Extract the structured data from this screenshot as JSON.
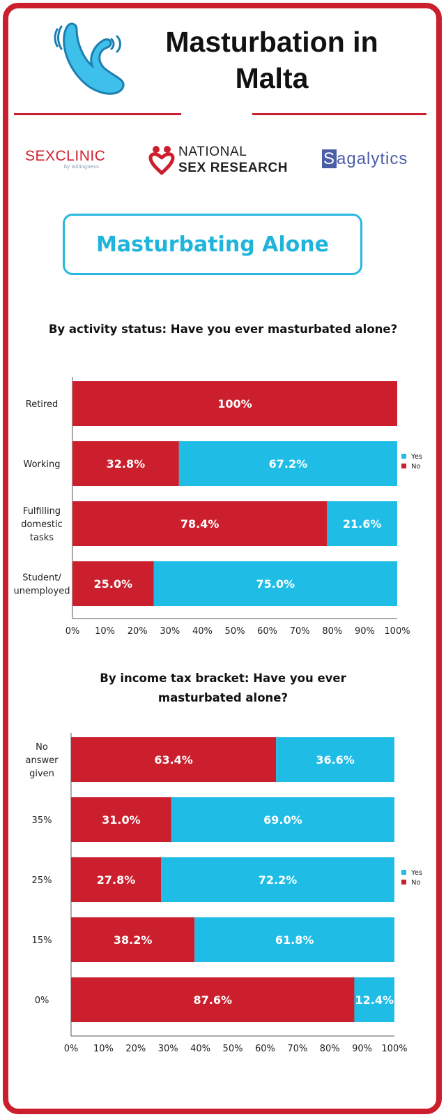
{
  "header": {
    "title_line1": "Masturbation in",
    "title_line2": "Malta",
    "logo_icon": "vibrator-icon"
  },
  "logos": {
    "sexclinic": "SEXCLINIC",
    "sexclinic_sub": "by willingness",
    "nsr_line1": "NATIONAL",
    "nsr_line2": "SEX RESEARCH",
    "sagalytics_s": "S",
    "sagalytics_rest": "agalytics",
    "nsr_icon": "heart-icon"
  },
  "banner": {
    "label": "Masturbating Alone"
  },
  "colors": {
    "no": "#cc1f2d",
    "yes": "#1fbde6",
    "border": "#cc1f2d",
    "banner": "#29b8e0"
  },
  "chart_data": [
    {
      "type": "bar",
      "orientation": "horizontal",
      "stacked": true,
      "title": "By activity status: Have you ever masturbated alone?",
      "categories": [
        "Retired",
        "Working",
        "Fulfilling domestic tasks",
        "Student/ unemployed"
      ],
      "series": [
        {
          "name": "No",
          "values": [
            100,
            32.8,
            78.4,
            25.0
          ],
          "labels": [
            "100%",
            "32.8%",
            "78.4%",
            "25.0%"
          ]
        },
        {
          "name": "Yes",
          "values": [
            0,
            67.2,
            21.6,
            75.0
          ],
          "labels": [
            "",
            "67.2%",
            "21.6%",
            "75.0%"
          ]
        }
      ],
      "xticks": [
        "0%",
        "10%",
        "20%",
        "30%",
        "40%",
        "50%",
        "60%",
        "70%",
        "80%",
        "90%",
        "100%"
      ],
      "xlim": [
        0,
        100
      ],
      "legend": [
        "Yes",
        "No"
      ],
      "legend_position": "right"
    },
    {
      "type": "bar",
      "orientation": "horizontal",
      "stacked": true,
      "title": "By income tax bracket: Have you ever masturbated alone?",
      "categories": [
        "No answer given",
        "35%",
        "25%",
        "15%",
        "0%"
      ],
      "series": [
        {
          "name": "No",
          "values": [
            63.4,
            31.0,
            27.8,
            38.2,
            87.6
          ],
          "labels": [
            "63.4%",
            "31.0%",
            "27.8%",
            "38.2%",
            "87.6%"
          ]
        },
        {
          "name": "Yes",
          "values": [
            36.6,
            69.0,
            72.2,
            61.8,
            12.4
          ],
          "labels": [
            "36.6%",
            "69.0%",
            "72.2%",
            "61.8%",
            "12.4%"
          ]
        }
      ],
      "xticks": [
        "0%",
        "10%",
        "20%",
        "30%",
        "40%",
        "50%",
        "60%",
        "70%",
        "80%",
        "90%",
        "100%"
      ],
      "xlim": [
        0,
        100
      ],
      "legend": [
        "Yes",
        "No"
      ],
      "legend_position": "right"
    }
  ]
}
